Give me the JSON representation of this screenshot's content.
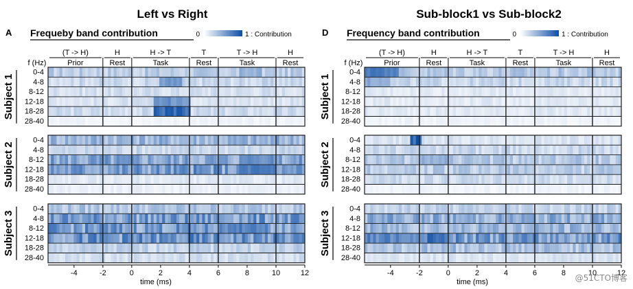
{
  "watermark": "@51CTO博客",
  "contribution_label": "1 : Contribution",
  "colorbar_min": "0",
  "colors": {
    "heat_low": "#ffffff",
    "heat_high": "#0d4ea6",
    "border": "#1a1a1a"
  },
  "chart_data": [
    {
      "type": "heatmap",
      "panel_letter": "A",
      "title": "Left vs Right",
      "subtitle": "Frequeby band contribution",
      "xlabel": "time (ms)",
      "ylabel": "f (Hz)",
      "xlim": [
        -5.8,
        12
      ],
      "x_ticks": [
        -4,
        -2,
        0,
        2,
        4,
        6,
        8,
        10,
        12
      ],
      "phases": [
        {
          "top": "(T -> H)",
          "bottom": "Prior",
          "start": -5.8,
          "end": -2
        },
        {
          "top": "H",
          "bottom": "Rest",
          "start": -2,
          "end": 0
        },
        {
          "top": "H -> T",
          "bottom": "Task",
          "start": 0,
          "end": 4
        },
        {
          "top": "T",
          "bottom": "Rest",
          "start": 4,
          "end": 6
        },
        {
          "top": "T -> H",
          "bottom": "Task",
          "start": 6,
          "end": 10
        },
        {
          "top": "H",
          "bottom": "Rest",
          "start": 10,
          "end": 12
        }
      ],
      "freq_bands": [
        "0-4",
        "4-8",
        "8-12",
        "12-18",
        "18-28",
        "28-40"
      ],
      "subjects": [
        {
          "name": "Subject 1",
          "band_contribution": [
            0.28,
            0.22,
            0.18,
            0.16,
            0.2,
            0.06
          ],
          "hotspots": [
            {
              "band": 1,
              "start": 2,
              "end": 3.5,
              "value": 0.65
            },
            {
              "band": 3,
              "start": 1.5,
              "end": 4,
              "value": 0.7
            },
            {
              "band": 4,
              "start": 1.5,
              "end": 4,
              "value": 0.95
            },
            {
              "band": 0,
              "start": 7.5,
              "end": 9,
              "value": 0.5
            }
          ]
        },
        {
          "name": "Subject 2",
          "band_contribution": [
            0.42,
            0.22,
            0.5,
            0.55,
            0.12,
            0.08
          ],
          "hotspots": [
            {
              "band": 3,
              "start": 7.5,
              "end": 10,
              "value": 0.85
            },
            {
              "band": 2,
              "start": 7.5,
              "end": 10,
              "value": 0.7
            }
          ]
        },
        {
          "name": "Subject 3",
          "band_contribution": [
            0.32,
            0.55,
            0.55,
            0.58,
            0.25,
            0.18
          ],
          "hotspots": [
            {
              "band": 2,
              "start": 6,
              "end": 9,
              "value": 0.75
            }
          ]
        }
      ]
    },
    {
      "type": "heatmap",
      "panel_letter": "D",
      "title": "Sub-block1 vs Sub-block2",
      "subtitle": "Frequency band contribution",
      "xlabel": "time (ms)",
      "ylabel": "f (Hz)",
      "xlim": [
        -5.8,
        12
      ],
      "x_ticks": [
        -4,
        -2,
        0,
        2,
        4,
        6,
        8,
        10,
        12
      ],
      "phases": [
        {
          "top": "(T -> H)",
          "bottom": "Prior",
          "start": -5.8,
          "end": -2
        },
        {
          "top": "H",
          "bottom": "Rest",
          "start": -2,
          "end": 0
        },
        {
          "top": "H -> T",
          "bottom": "Task",
          "start": 0,
          "end": 4
        },
        {
          "top": "T",
          "bottom": "Rest",
          "start": 4,
          "end": 6
        },
        {
          "top": "T -> H",
          "bottom": "Task",
          "start": 6,
          "end": 10
        },
        {
          "top": "H",
          "bottom": "Rest",
          "start": 10,
          "end": 12
        }
      ],
      "freq_bands": [
        "0-4",
        "4-8",
        "8-12",
        "12-18",
        "18-28",
        "28-40"
      ],
      "subjects": [
        {
          "name": "Subject 1",
          "band_contribution": [
            0.3,
            0.22,
            0.12,
            0.12,
            0.12,
            0.06
          ],
          "hotspots": [
            {
              "band": 0,
              "start": -5.8,
              "end": -3.5,
              "value": 0.9
            },
            {
              "band": 1,
              "start": -5.8,
              "end": -4,
              "value": 0.55
            }
          ]
        },
        {
          "name": "Subject 2",
          "band_contribution": [
            0.15,
            0.22,
            0.3,
            0.28,
            0.2,
            0.06
          ],
          "hotspots": [
            {
              "band": 0,
              "start": -2.6,
              "end": -1.8,
              "value": 1.0
            },
            {
              "band": 2,
              "start": -2,
              "end": 0,
              "value": 0.5
            }
          ]
        },
        {
          "name": "Subject 3",
          "band_contribution": [
            0.25,
            0.45,
            0.4,
            0.55,
            0.35,
            0.15
          ],
          "hotspots": [
            {
              "band": 3,
              "start": -5.8,
              "end": 0,
              "value": 0.7
            },
            {
              "band": 3,
              "start": -1.5,
              "end": 0,
              "value": 0.95
            }
          ]
        }
      ]
    }
  ]
}
